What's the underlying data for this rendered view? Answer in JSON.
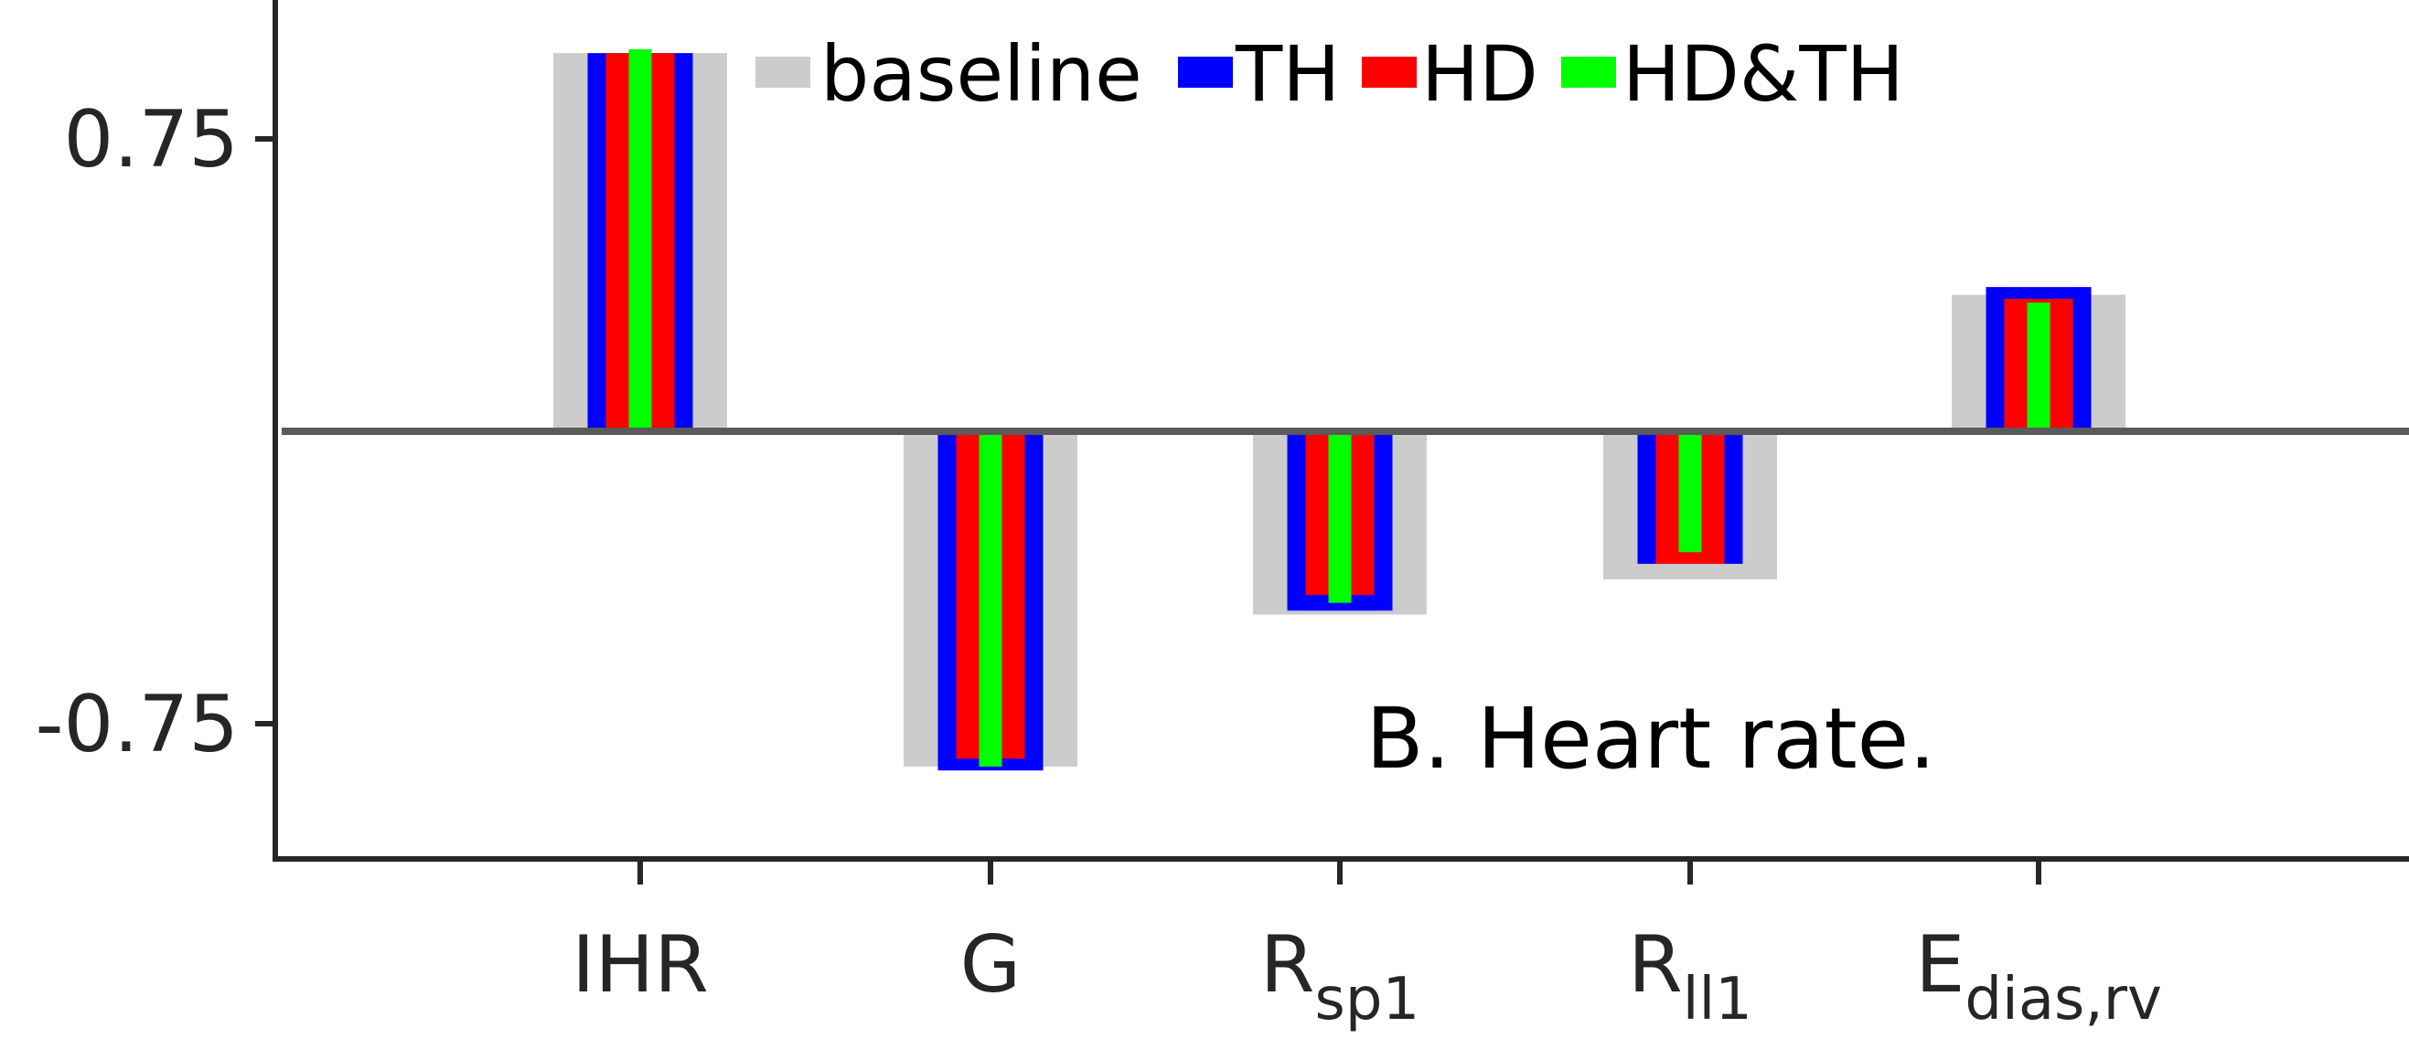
{
  "chart_data": {
    "type": "bar",
    "annotation": "B. Heart rate.",
    "categories": [
      {
        "main": "IHR",
        "sub": ""
      },
      {
        "main": "G",
        "sub": ""
      },
      {
        "main": "R",
        "sub": "sp1"
      },
      {
        "main": "R",
        "sub": "ll1"
      },
      {
        "main": "E",
        "sub": "dias,rv"
      }
    ],
    "yticks": [
      {
        "value": 0.75,
        "label": "0.75"
      },
      {
        "value": -0.75,
        "label": "-0.75"
      }
    ],
    "ylim": [
      -1.1,
      1.1
    ],
    "zero_line": true,
    "grid": false,
    "legend_position": "top",
    "series": [
      {
        "name": "baseline",
        "color": "#cccccc",
        "values": [
          0.97,
          -0.86,
          -0.47,
          -0.38,
          0.35
        ]
      },
      {
        "name": "TH",
        "color": "#0000ff",
        "values": [
          0.97,
          -0.87,
          -0.46,
          -0.34,
          0.37
        ]
      },
      {
        "name": "HD",
        "color": "#ff0000",
        "values": [
          0.97,
          -0.84,
          -0.42,
          -0.34,
          0.34
        ]
      },
      {
        "name": "HD&TH",
        "color": "#00ff00",
        "values": [
          0.98,
          -0.86,
          -0.44,
          -0.31,
          0.33
        ]
      }
    ]
  }
}
